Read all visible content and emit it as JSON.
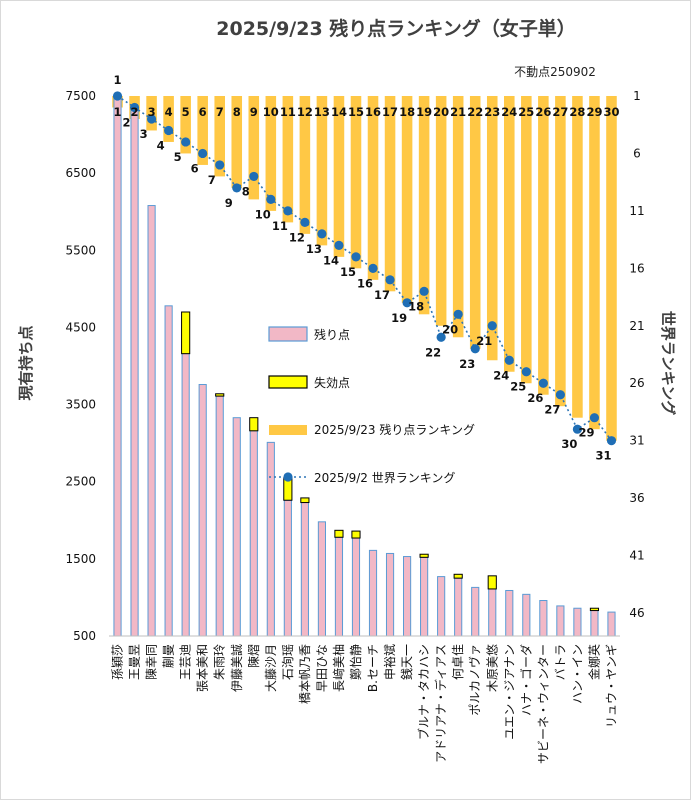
{
  "chart_data": {
    "type": "bar",
    "title": "2025/9/23 残り点ランキング（女子単）",
    "note": "不動点250902",
    "ylabel_left": "現有持ち点",
    "ylabel_right": "世界ランキング",
    "yticks_left": [
      "7500",
      "6500",
      "5500",
      "4500",
      "3500",
      "2500",
      "1500",
      "500"
    ],
    "yticks_right": [
      "1",
      "6",
      "11",
      "16",
      "21",
      "26",
      "31",
      "36",
      "41",
      "46"
    ],
    "ylim_left": [
      500,
      7500
    ],
    "ylim_right": [
      1,
      46
    ],
    "categories": [
      "孫穎莎",
      "王曼昱",
      "陳幸同",
      "蒯曼",
      "王芸迪",
      "張本美和",
      "朱雨玲",
      "伊藤美誠",
      "陳熠",
      "大藤沙月",
      "石洵瑶",
      "橋本帆乃香",
      "早田ひな",
      "長﨑美柚",
      "鄭怡静",
      "B.セーチ",
      "申裕斌",
      "銭天一",
      "ブルナ・タカハシ",
      "アドリアナ・ディアス",
      "何卓佳",
      "ポルカノヴァ",
      "木原美悠",
      "ユエン・ジアナン",
      "ハナ・ゴーダ",
      "サビーネ・ウィンター",
      "バトラ",
      "ハン・イン",
      "金娜英",
      "リュウ・ヤンギ"
    ],
    "series": [
      {
        "name": "残り点",
        "values": [
          7500,
          7360,
          6080,
          4780,
          4160,
          3760,
          3610,
          3330,
          3160,
          3010,
          2260,
          2230,
          1980,
          1780,
          1770,
          1610,
          1570,
          1530,
          1520,
          1270,
          1250,
          1130,
          1110,
          1090,
          1040,
          960,
          890,
          860,
          830,
          810
        ]
      },
      {
        "name": "失効点",
        "values": [
          0,
          0,
          0,
          0,
          540,
          0,
          30,
          0,
          170,
          0,
          290,
          60,
          0,
          90,
          90,
          0,
          0,
          0,
          40,
          0,
          50,
          0,
          170,
          0,
          0,
          0,
          0,
          0,
          30,
          0
        ]
      },
      {
        "name": "2025/9/23 残り点ランキング",
        "values": [
          1,
          2,
          3,
          4,
          5,
          6,
          7,
          8,
          9,
          10,
          11,
          12,
          13,
          14,
          15,
          16,
          17,
          18,
          19,
          20,
          21,
          22,
          23,
          24,
          25,
          26,
          27,
          28,
          29,
          30
        ]
      },
      {
        "name": "2025/9/2 世界ランキング",
        "values": [
          1,
          2,
          3,
          4,
          5,
          6,
          7,
          9,
          8,
          10,
          11,
          12,
          13,
          14,
          15,
          16,
          17,
          19,
          18,
          22,
          20,
          23,
          21,
          24,
          25,
          26,
          27,
          30,
          29,
          31
        ]
      }
    ],
    "legend": [
      "残り点",
      "失効点",
      "2025/9/23 残り点ランキング",
      "2025/9/2 世界ランキング"
    ],
    "legend_position": "center-right",
    "colors": {
      "remaining_fill": "#f2b8c6",
      "remaining_edge": "#5b9bd5",
      "expired_fill": "#ffff00",
      "expired_edge": "#000000",
      "ranking_bar": "#ffc845",
      "world_line": "#2e75b6",
      "world_point": "#1f6eb5"
    },
    "grid": false
  }
}
